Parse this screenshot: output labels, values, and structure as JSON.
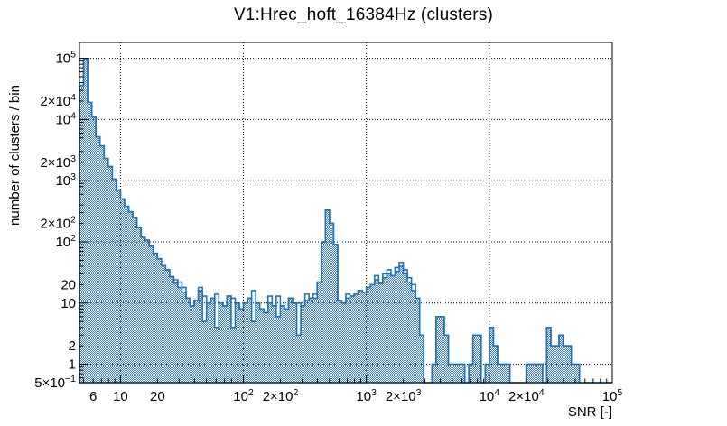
{
  "chart_data": {
    "type": "bar",
    "subtype": "step-histogram-log-log",
    "title": "V1:Hrec_hoft_16384Hz (clusters)",
    "xlabel": "SNR [-]",
    "ylabel": "number of clusters / bin",
    "x_scale": "log",
    "y_scale": "log",
    "x_range": [
      4.64,
      100000
    ],
    "y_range": [
      0.5,
      180000
    ],
    "grid": true,
    "x_gridlines": [
      10,
      100,
      1000,
      10000
    ],
    "y_gridlines": [
      1,
      10,
      100,
      1000,
      10000,
      100000
    ],
    "x_ticks": [
      {
        "v": 6,
        "pre": "",
        "base": "6",
        "exp": ""
      },
      {
        "v": 10,
        "pre": "",
        "base": "10",
        "exp": ""
      },
      {
        "v": 20,
        "pre": "",
        "base": "20",
        "exp": ""
      },
      {
        "v": 100,
        "pre": "",
        "base": "10",
        "exp": "2"
      },
      {
        "v": 200,
        "pre": "2×",
        "base": "10",
        "exp": "2"
      },
      {
        "v": 1000,
        "pre": "",
        "base": "10",
        "exp": "3"
      },
      {
        "v": 2000,
        "pre": "2×",
        "base": "10",
        "exp": "3"
      },
      {
        "v": 10000,
        "pre": "",
        "base": "10",
        "exp": "4"
      },
      {
        "v": 20000,
        "pre": "2×",
        "base": "10",
        "exp": "4"
      },
      {
        "v": 100000,
        "pre": "",
        "base": "10",
        "exp": "5"
      }
    ],
    "y_ticks": [
      {
        "v": 100000,
        "pre": "",
        "base": "10",
        "exp": "5"
      },
      {
        "v": 20000,
        "pre": "2×",
        "base": "10",
        "exp": "4"
      },
      {
        "v": 10000,
        "pre": "",
        "base": "10",
        "exp": "4"
      },
      {
        "v": 2000,
        "pre": "2×",
        "base": "10",
        "exp": "3"
      },
      {
        "v": 1000,
        "pre": "",
        "base": "10",
        "exp": "3"
      },
      {
        "v": 200,
        "pre": "2×",
        "base": "10",
        "exp": "2"
      },
      {
        "v": 100,
        "pre": "",
        "base": "10",
        "exp": "2"
      },
      {
        "v": 20,
        "pre": "",
        "base": "20",
        "exp": ""
      },
      {
        "v": 10,
        "pre": "",
        "base": "10",
        "exp": ""
      },
      {
        "v": 2,
        "pre": "",
        "base": "2",
        "exp": ""
      },
      {
        "v": 1,
        "pre": "",
        "base": "1",
        "exp": ""
      },
      {
        "v": 0.5,
        "pre": "5×",
        "base": "10",
        "exp": "−1"
      }
    ],
    "bins_per_decade": 30,
    "log10_min": 0.6667,
    "log10_max": 5,
    "series": [
      {
        "name": "clusters-outline",
        "style": "line",
        "counts": [
          36000,
          95000,
          19000,
          11000,
          5200,
          3700,
          2300,
          1700,
          1060,
          700,
          500,
          380,
          310,
          250,
          172,
          119,
          107,
          85,
          65,
          53,
          41,
          35,
          27,
          24,
          22,
          18,
          12,
          9,
          11,
          18,
          13,
          10,
          12,
          14,
          10,
          9,
          13,
          12,
          10,
          8,
          10,
          12,
          16,
          10,
          8,
          7,
          13,
          9,
          13,
          9,
          8,
          12,
          10,
          10,
          9,
          14,
          12,
          14,
          22,
          100,
          330,
          200,
          90,
          11,
          10,
          14,
          13,
          14,
          16,
          15,
          18,
          20,
          28,
          21,
          30,
          35,
          28,
          38,
          46,
          35,
          26,
          20,
          12,
          3,
          0,
          0,
          1,
          6,
          6,
          3,
          1,
          1,
          1,
          1,
          0,
          1,
          3,
          3,
          0,
          1,
          4,
          2,
          1,
          1,
          1,
          0,
          0,
          0,
          0,
          1,
          1,
          1,
          1,
          0,
          4,
          2,
          2,
          3,
          2,
          2,
          1,
          1,
          0,
          0,
          0,
          0,
          0,
          0,
          0,
          0
        ]
      },
      {
        "name": "clusters-filled",
        "style": "hatched-fill",
        "counts": [
          36000,
          95000,
          19000,
          11000,
          5200,
          3700,
          2300,
          1700,
          1060,
          700,
          500,
          380,
          310,
          250,
          172,
          119,
          107,
          85,
          65,
          53,
          41,
          35,
          27,
          21,
          18,
          15,
          12,
          9,
          11,
          16,
          5,
          10,
          12,
          4,
          10,
          9,
          13,
          4,
          10,
          8,
          10,
          12,
          5,
          10,
          8,
          7,
          10,
          9,
          6,
          9,
          8,
          12,
          10,
          3,
          9,
          11,
          12,
          12,
          22,
          100,
          330,
          200,
          90,
          11,
          10,
          12,
          13,
          14,
          16,
          15,
          18,
          20,
          24,
          21,
          26,
          30,
          28,
          33,
          40,
          30,
          22,
          16,
          12,
          3,
          0,
          0,
          1,
          6,
          6,
          3,
          1,
          1,
          1,
          1,
          0,
          1,
          3,
          3,
          0,
          1,
          4,
          2,
          1,
          1,
          1,
          0,
          0,
          0,
          0,
          1,
          1,
          1,
          1,
          0,
          4,
          2,
          2,
          3,
          2,
          2,
          1,
          1,
          0,
          0,
          0,
          0,
          0,
          0,
          0,
          0
        ]
      }
    ],
    "colors": {
      "line": "#2273b2",
      "fill_dot": "#3b7cb8",
      "grid": "#000000",
      "frame": "#000000",
      "background": "#ffffff"
    }
  }
}
